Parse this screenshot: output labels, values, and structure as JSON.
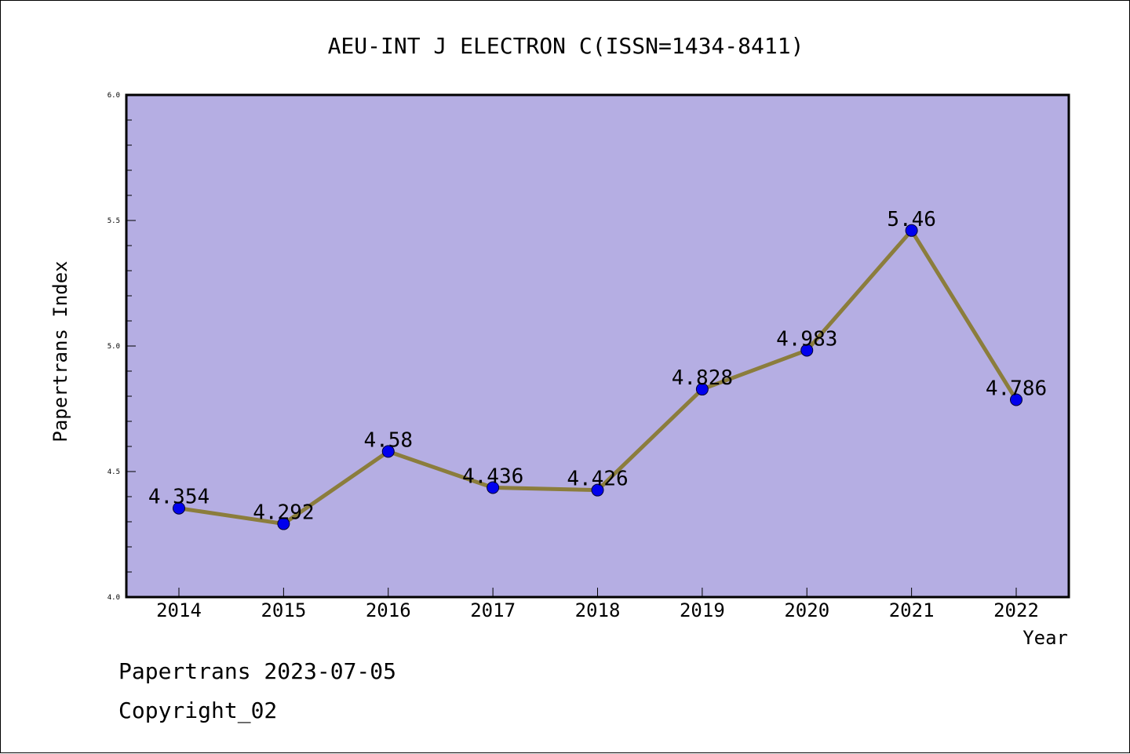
{
  "chart_data": {
    "type": "line",
    "title": "AEU-INT J ELECTRON C(ISSN=1434-8411)",
    "xlabel": "Year",
    "ylabel": "Papertrans Index",
    "categories": [
      "2014",
      "2015",
      "2016",
      "2017",
      "2018",
      "2019",
      "2020",
      "2021",
      "2022"
    ],
    "values": [
      4.354,
      4.292,
      4.58,
      4.436,
      4.426,
      4.828,
      4.983,
      5.46,
      4.786
    ],
    "data_labels": [
      "4.354",
      "4.292",
      "4.58",
      "4.436",
      "4.426",
      "4.828",
      "4.983",
      "5.46",
      "4.786"
    ],
    "ylim": [
      4.0,
      6.0
    ],
    "yticks": [
      "4.0",
      "4.5",
      "5.0",
      "5.5",
      "6.0"
    ],
    "grid": false,
    "colors": {
      "plot_background": "#b5aee3",
      "line": "#8b7d3c",
      "marker": "#0000ee"
    }
  },
  "footer": {
    "line1": "Papertrans 2023-07-05",
    "line2": "Copyright_02"
  }
}
